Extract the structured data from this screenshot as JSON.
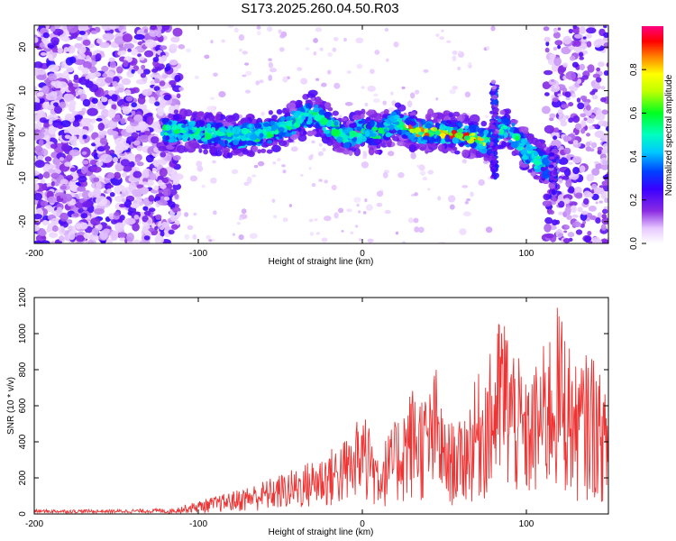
{
  "chart_data": [
    {
      "type": "heatmap",
      "title": "S173.2025.260.04.50.R03",
      "xlabel": "Height of straight line (km)",
      "ylabel": "Frequency (Hz)",
      "xlim": [
        -200,
        150
      ],
      "ylim": [
        -25,
        25
      ],
      "xticks": [
        -200,
        -100,
        0,
        100
      ],
      "yticks": [
        -20,
        -10,
        0,
        10,
        20
      ],
      "colorbar": {
        "label": "Normalized spectral amplitude",
        "range": [
          0,
          1
        ],
        "ticks": [
          "0.0",
          "0.2",
          "0.4",
          "0.6",
          "0.8"
        ]
      },
      "ridge": {
        "description_x": [
          -120,
          -100,
          -80,
          -60,
          -40,
          -30,
          -20,
          -10,
          0,
          10,
          20,
          30,
          40,
          50,
          60,
          70,
          78,
          85,
          92,
          100,
          108,
          115
        ],
        "frequency": [
          1,
          0.5,
          -0.5,
          0,
          3,
          5,
          2,
          -1,
          1,
          0,
          3,
          1,
          0.5,
          0.5,
          0,
          -1,
          -2,
          2,
          0,
          -4,
          -6,
          -8
        ]
      }
    },
    {
      "type": "line",
      "xlabel": "Height of straight line (km)",
      "ylabel": "SNR (10 * v/v)",
      "xlim": [
        -200,
        150
      ],
      "ylim": [
        0,
        1200
      ],
      "xticks": [
        -200,
        -100,
        0,
        100
      ],
      "yticks": [
        0,
        200,
        400,
        600,
        800,
        1000,
        1200
      ],
      "series": [
        {
          "name": "SNR",
          "color": "#ee3333",
          "envelope_x": [
            -200,
            -150,
            -120,
            -100,
            -80,
            -60,
            -40,
            -20,
            -5,
            0,
            10,
            20,
            30,
            40,
            45,
            50,
            60,
            70,
            80,
            85,
            90,
            100,
            110,
            120,
            130,
            140,
            150
          ],
          "envelope_y": [
            15,
            15,
            20,
            70,
            120,
            180,
            250,
            350,
            450,
            600,
            350,
            500,
            700,
            650,
            800,
            500,
            500,
            750,
            900,
            1150,
            1000,
            700,
            900,
            1150,
            800,
            900,
            600
          ]
        }
      ]
    }
  ],
  "colors": {
    "line": "#ee3333",
    "axis": "#000000"
  }
}
